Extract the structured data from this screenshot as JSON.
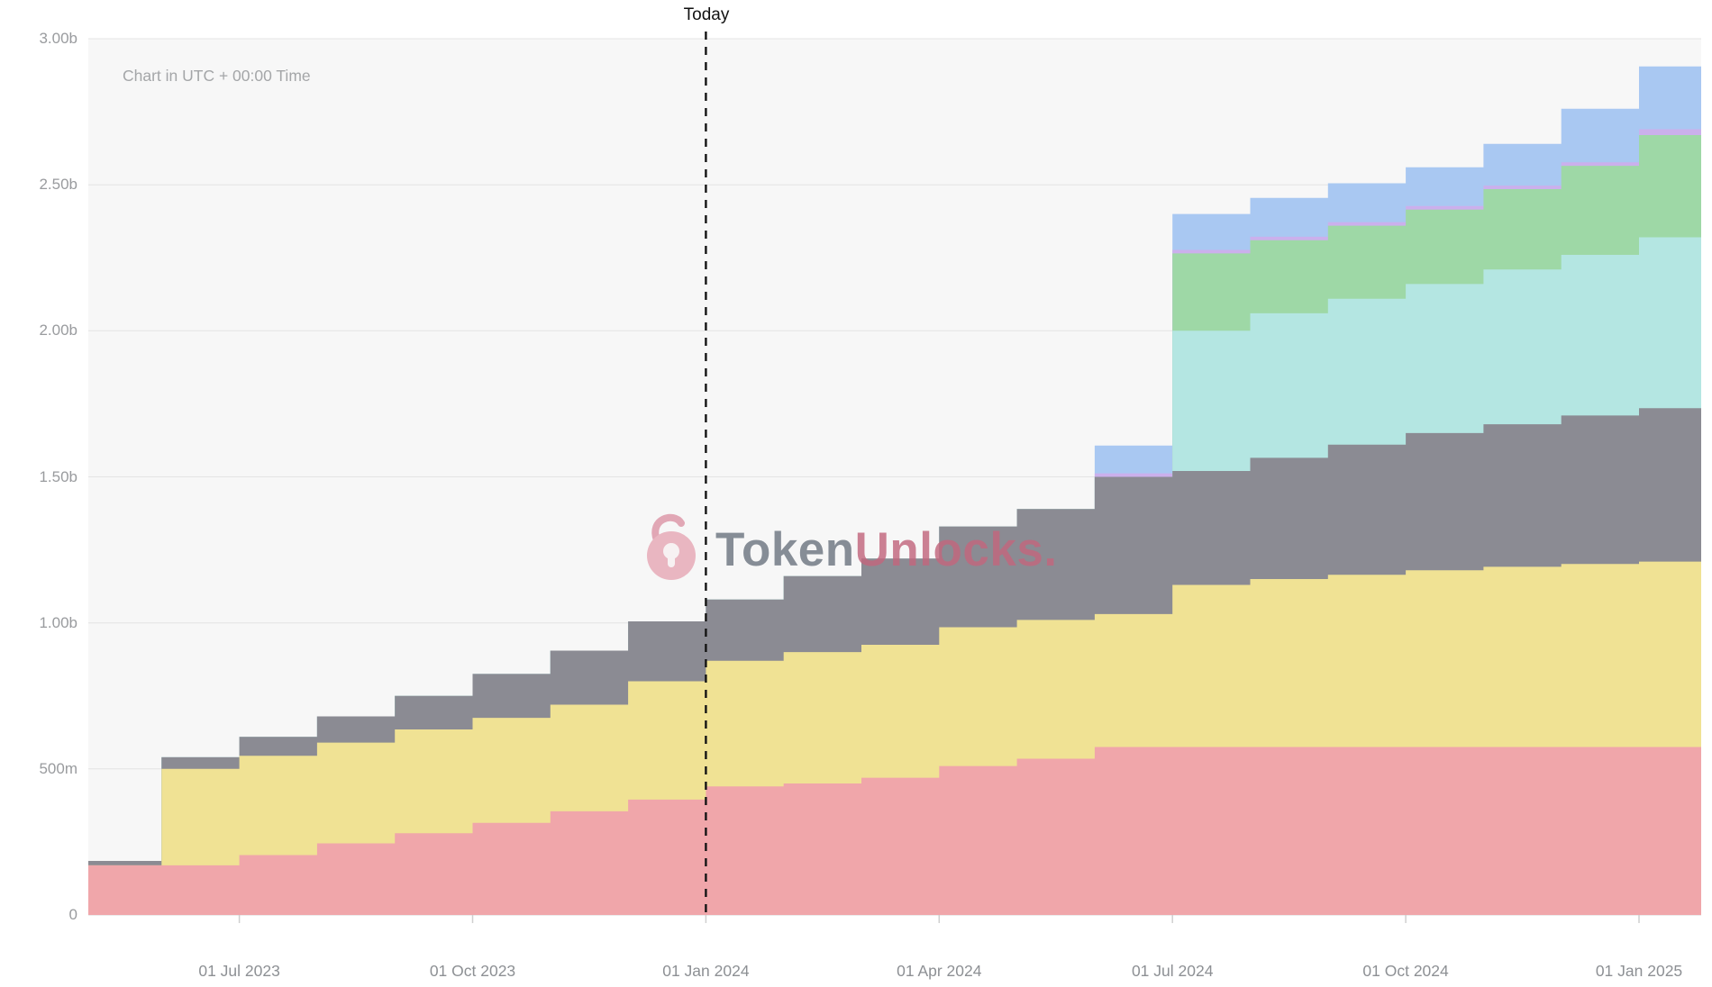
{
  "header": {
    "today_label": "Today",
    "timezone_note": "Chart in UTC + 00:00 Time"
  },
  "watermark": {
    "icon": "open-padlock-icon",
    "brand_primary": "Token",
    "brand_secondary": "Unlocks."
  },
  "chart_data": {
    "type": "area",
    "stacked": true,
    "step": true,
    "title": "",
    "xlabel": "",
    "ylabel": "",
    "unit": "tokens, millions (m) / billions (b)",
    "ylim_m": [
      0,
      3000
    ],
    "y_ticks_m": [
      0,
      500,
      1000,
      1500,
      2000,
      2500,
      3000
    ],
    "y_tick_labels": [
      "0",
      "500m",
      "1.00b",
      "1.50b",
      "2.00b",
      "2.50b",
      "3.00b"
    ],
    "x_months": [
      "May 2023",
      "Jun 2023",
      "Jul 2023",
      "Aug 2023",
      "Sep 2023",
      "Oct 2023",
      "Nov 2023",
      "Dec 2023",
      "Jan 2024",
      "Feb 2024",
      "Mar 2024",
      "Apr 2024",
      "May 2024",
      "Jun 2024",
      "Jul 2024",
      "Aug 2024",
      "Sep 2024",
      "Oct 2024",
      "Nov 2024",
      "Dec 2024",
      "Jan 2025"
    ],
    "x_tick_month_indices": [
      2,
      5,
      8,
      11,
      14,
      17,
      20
    ],
    "x_tick_labels": [
      "01 Jul 2023",
      "01 Oct 2023",
      "01 Jan 2024",
      "01 Apr 2024",
      "01 Jul 2024",
      "01 Oct 2024",
      "01 Jan 2025"
    ],
    "today_month_index": 8,
    "today_x": "01 Jan 2024",
    "grid": true,
    "legend": "none",
    "values_note": "cumulative_top_m = running stack top per month in millions of tokens; steps occur at each month start",
    "series": [
      {
        "name": "pink",
        "color": "#f0a6aa",
        "cumulative_top_m": [
          170,
          170,
          205,
          245,
          280,
          315,
          355,
          395,
          440,
          450,
          470,
          510,
          535,
          575,
          575,
          575,
          575,
          575,
          575,
          575,
          575
        ]
      },
      {
        "name": "yellow",
        "color": "#f0e294",
        "cumulative_top_m": [
          170,
          500,
          545,
          590,
          635,
          675,
          720,
          800,
          870,
          900,
          925,
          985,
          1010,
          1030,
          1130,
          1150,
          1165,
          1180,
          1192,
          1202,
          1210
        ]
      },
      {
        "name": "gray",
        "color": "#8b8b93",
        "cumulative_top_m": [
          185,
          540,
          610,
          680,
          750,
          825,
          905,
          1005,
          1080,
          1160,
          1220,
          1330,
          1390,
          1500,
          1520,
          1565,
          1610,
          1650,
          1680,
          1710,
          1735
        ]
      },
      {
        "name": "cyan",
        "color": "#b4e6e2",
        "cumulative_top_m": [
          185,
          540,
          610,
          680,
          750,
          825,
          905,
          1005,
          1080,
          1160,
          1220,
          1330,
          1390,
          1500,
          2000,
          2060,
          2110,
          2160,
          2210,
          2260,
          2320
        ]
      },
      {
        "name": "green",
        "color": "#9ed8a6",
        "cumulative_top_m": [
          185,
          540,
          610,
          680,
          750,
          825,
          905,
          1005,
          1080,
          1160,
          1220,
          1330,
          1390,
          1500,
          2265,
          2310,
          2360,
          2415,
          2485,
          2565,
          2670
        ]
      },
      {
        "name": "purple",
        "color": "#cbb0ec",
        "cumulative_top_m": [
          185,
          540,
          610,
          680,
          750,
          825,
          905,
          1005,
          1080,
          1160,
          1220,
          1330,
          1390,
          1512,
          2277,
          2322,
          2372,
          2427,
          2497,
          2577,
          2690
        ]
      },
      {
        "name": "blue",
        "color": "#a9c8f2",
        "cumulative_top_m": [
          185,
          540,
          610,
          680,
          750,
          825,
          905,
          1005,
          1080,
          1160,
          1220,
          1330,
          1390,
          1607,
          2400,
          2455,
          2505,
          2560,
          2640,
          2760,
          2905
        ]
      }
    ],
    "colors": {
      "plot_bg": "#f7f7f7",
      "grid": "#e4e4e4",
      "baseline": "#d8d8d8",
      "tick_mark": "#cfcfcf",
      "axis_text": "#999b9e",
      "today_line": "#141414"
    }
  }
}
